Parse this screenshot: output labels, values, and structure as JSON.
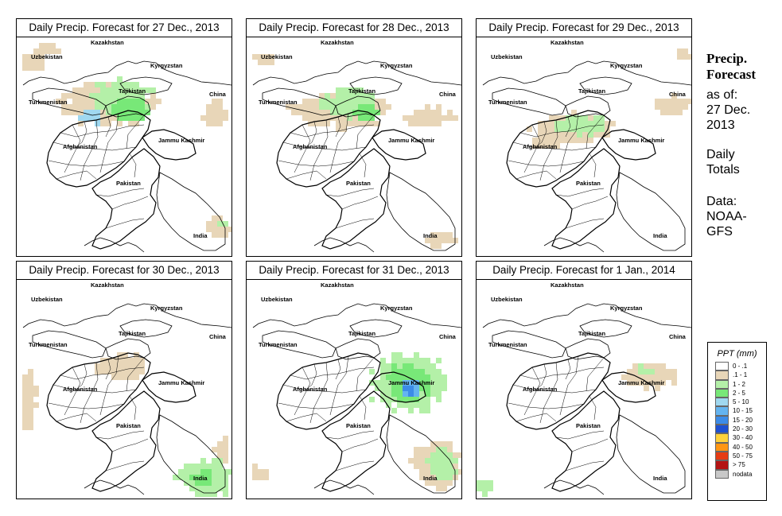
{
  "panels": [
    {
      "title": "Daily Precip. Forecast for  27 Dec., 2013",
      "pattern": "north_heavy"
    },
    {
      "title": "Daily Precip. Forecast for  28 Dec., 2013",
      "pattern": "north_medium"
    },
    {
      "title": "Daily Precip. Forecast for  29 Dec., 2013",
      "pattern": "north_light"
    },
    {
      "title": "Daily Precip. Forecast for  30 Dec., 2013",
      "pattern": "south_india"
    },
    {
      "title": "Daily Precip. Forecast for  31 Dec., 2013",
      "pattern": "kashmir_storm"
    },
    {
      "title": "Daily Precip. Forecast for  1 Jan., 2014",
      "pattern": "light_east"
    }
  ],
  "map_labels": {
    "kazakhstan": "Kazakhstan",
    "uzbekistan": "Uzbekistan",
    "kyrgyzstan": "Kyrgyzstan",
    "tajikistan": "Tajikistan",
    "turkmenistan": "Turkmenistan",
    "china": "China",
    "afghanistan": "Afghanistan",
    "jammu_kashmir": "Jammu Kashmir",
    "pakistan": "Pakistan",
    "india": "India"
  },
  "side": {
    "title_line1": "Precip.",
    "title_line2": "Forecast",
    "asof_line1": "as of:",
    "asof_line2": "27 Dec.",
    "asof_line3": "2013",
    "totals_line1": "Daily",
    "totals_line2": "Totals",
    "data_line1": "Data:",
    "data_line2": "NOAA-",
    "data_line3": "GFS"
  },
  "legend": {
    "title": "PPT (mm)",
    "entries": [
      {
        "label": "0 - .1",
        "color": "#ffffff"
      },
      {
        "label": ".1 - 1",
        "color": "#e8d6b8"
      },
      {
        "label": "1 - 2",
        "color": "#b4f0a8"
      },
      {
        "label": "2 - 5",
        "color": "#78e878"
      },
      {
        "label": "5 - 10",
        "color": "#a0d8f0"
      },
      {
        "label": "10 - 15",
        "color": "#64b4f0"
      },
      {
        "label": "15 - 20",
        "color": "#3c8ce8"
      },
      {
        "label": "20 - 30",
        "color": "#1e50d2"
      },
      {
        "label": "30 - 40",
        "color": "#ffd23c"
      },
      {
        "label": "40 - 50",
        "color": "#ff9614"
      },
      {
        "label": "50 - 75",
        "color": "#e63c14"
      },
      {
        "label": "> 75",
        "color": "#b41414"
      },
      {
        "label": "nodata",
        "color": "#c8c8c8"
      }
    ]
  }
}
